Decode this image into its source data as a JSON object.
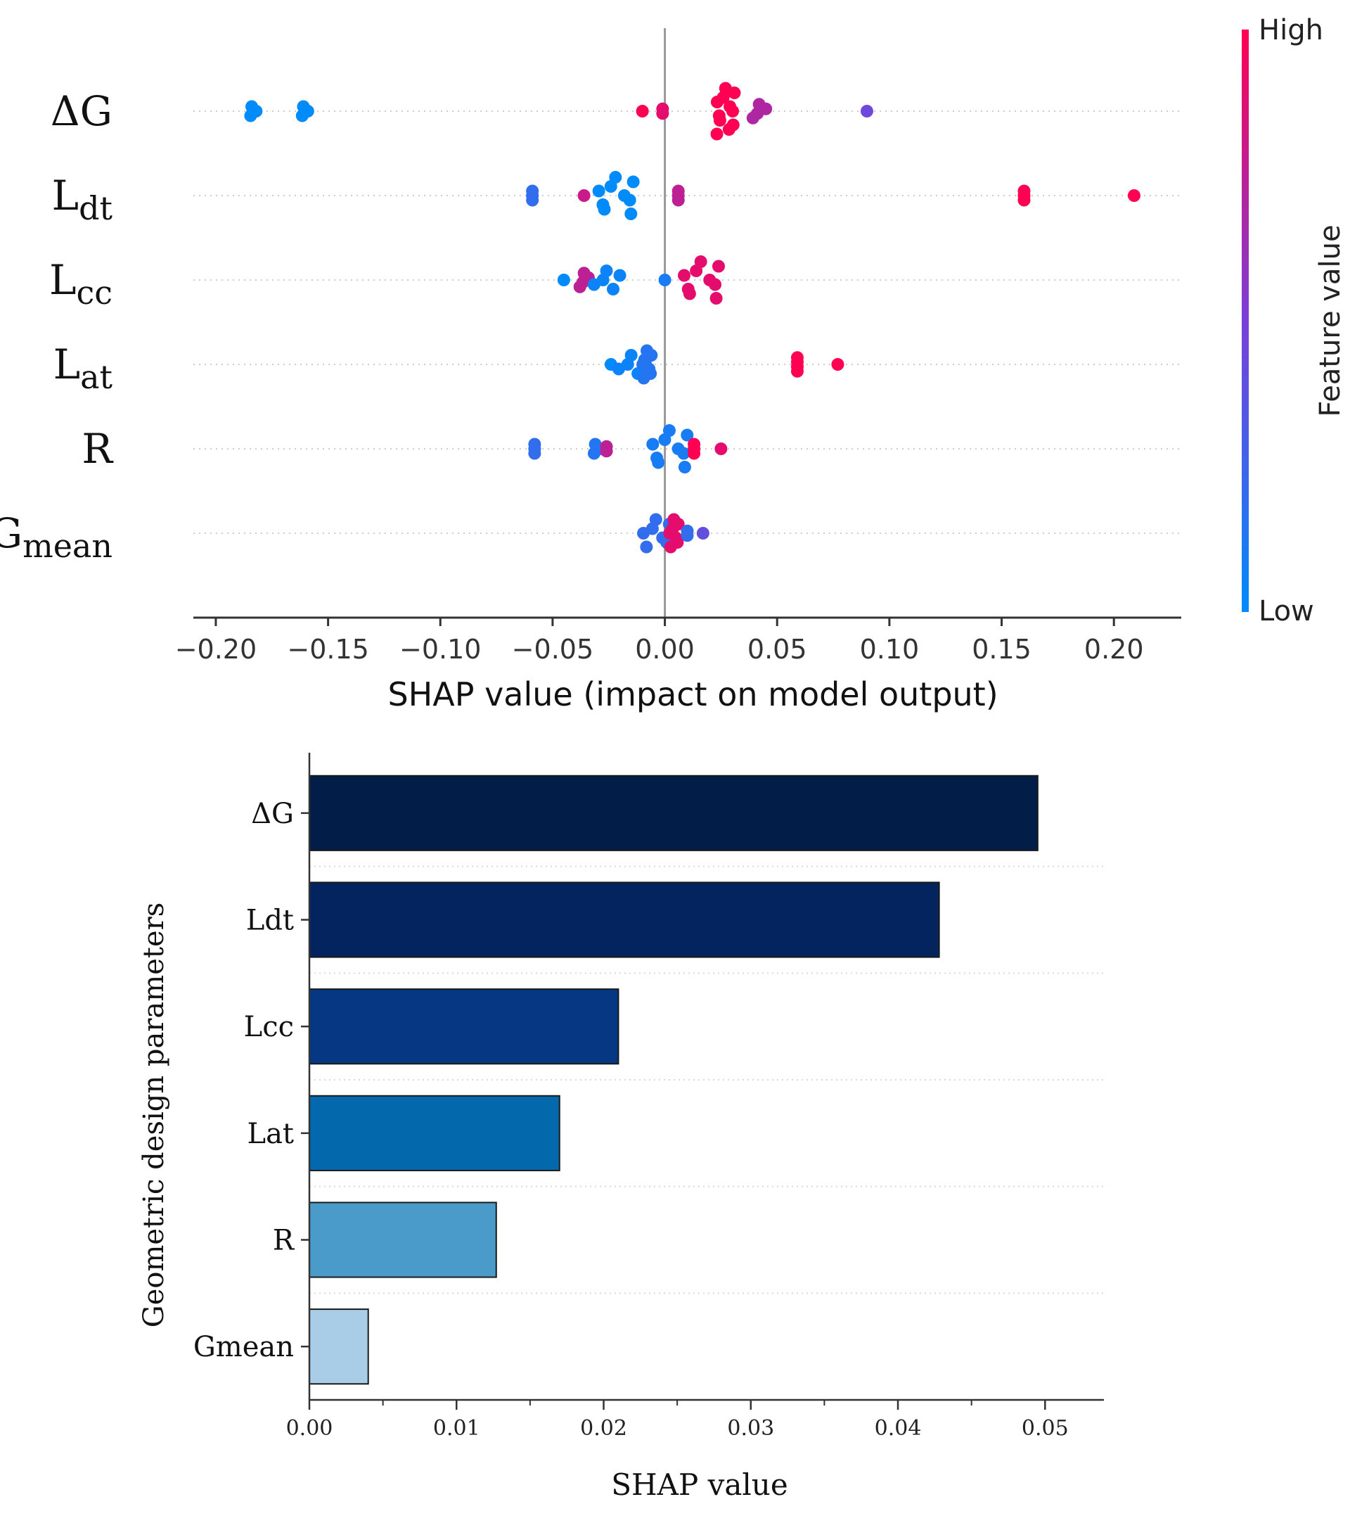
{
  "chart_data": [
    {
      "type": "scatter",
      "subtype": "shap-beeswarm",
      "xlabel": "SHAP value (impact on model output)",
      "xlim": [
        -0.21,
        0.23
      ],
      "xticks": [
        -0.2,
        -0.15,
        -0.1,
        -0.05,
        0.0,
        0.05,
        0.1,
        0.15,
        0.2
      ],
      "xtick_labels": [
        "−0.20",
        "−0.15",
        "−0.10",
        "−0.05",
        "0.00",
        "0.05",
        "0.10",
        "0.15",
        "0.20"
      ],
      "zero_line": 0.0,
      "colorbar": {
        "label": "Feature value",
        "high_label": "High",
        "low_label": "Low",
        "high_color": "#ff0052",
        "low_color": "#008bfb"
      },
      "features": [
        {
          "name": "ΔG",
          "main": "ΔG",
          "sub": "",
          "clusters": [
            {
              "x": -0.184,
              "c": 0.0,
              "n": 3,
              "w": 0.002
            },
            {
              "x": -0.161,
              "c": 0.0,
              "n": 3,
              "w": 0.002
            },
            {
              "x": -0.01,
              "c": 1.0,
              "n": 1,
              "w": 0.0
            },
            {
              "x": -0.001,
              "c": 0.9,
              "n": 2,
              "w": 0.0
            },
            {
              "x": 0.027,
              "c": 1.0,
              "n": 11,
              "w": 0.004
            },
            {
              "x": 0.042,
              "c": 0.7,
              "n": 4,
              "w": 0.003
            },
            {
              "x": 0.09,
              "c": 0.45,
              "n": 1,
              "w": 0.0
            }
          ]
        },
        {
          "name": "Ldt",
          "main": "L",
          "sub": "dt",
          "clusters": [
            {
              "x": -0.059,
              "c": 0.2,
              "n": 3,
              "w": 0.0
            },
            {
              "x": -0.036,
              "c": 0.8,
              "n": 1,
              "w": 0.0
            },
            {
              "x": -0.022,
              "c": 0.0,
              "n": 9,
              "w": 0.008
            },
            {
              "x": 0.006,
              "c": 0.75,
              "n": 3,
              "w": 0.0
            },
            {
              "x": 0.16,
              "c": 1.0,
              "n": 3,
              "w": 0.0
            },
            {
              "x": 0.209,
              "c": 1.0,
              "n": 1,
              "w": 0.0
            }
          ]
        },
        {
          "name": "Lcc",
          "main": "L",
          "sub": "cc",
          "clusters": [
            {
              "x": -0.045,
              "c": 0.0,
              "n": 1,
              "w": 0.0
            },
            {
              "x": -0.036,
              "c": 0.75,
              "n": 4,
              "w": 0.002
            },
            {
              "x": -0.026,
              "c": 0.05,
              "n": 5,
              "w": 0.006
            },
            {
              "x": 0.0,
              "c": 0.1,
              "n": 1,
              "w": 0.0
            },
            {
              "x": 0.016,
              "c": 0.9,
              "n": 9,
              "w": 0.008
            }
          ]
        },
        {
          "name": "Lat",
          "main": "L",
          "sub": "at",
          "clusters": [
            {
              "x": -0.024,
              "c": 0.0,
              "n": 1,
              "w": 0.0
            },
            {
              "x": -0.015,
              "c": 0.05,
              "n": 5,
              "w": 0.006
            },
            {
              "x": -0.008,
              "c": 0.15,
              "n": 7,
              "w": 0.002
            },
            {
              "x": 0.059,
              "c": 1.0,
              "n": 4,
              "w": 0.0
            },
            {
              "x": 0.077,
              "c": 1.0,
              "n": 1,
              "w": 0.0
            }
          ]
        },
        {
          "name": "R",
          "main": "R",
          "sub": "",
          "clusters": [
            {
              "x": -0.058,
              "c": 0.2,
              "n": 3,
              "w": 0.0
            },
            {
              "x": -0.031,
              "c": 0.15,
              "n": 3,
              "w": 0.002
            },
            {
              "x": -0.026,
              "c": 0.75,
              "n": 2,
              "w": 0.0
            },
            {
              "x": 0.002,
              "c": 0.1,
              "n": 9,
              "w": 0.008
            },
            {
              "x": 0.013,
              "c": 1.0,
              "n": 3,
              "w": 0.0
            },
            {
              "x": 0.025,
              "c": 0.9,
              "n": 1,
              "w": 0.0
            }
          ]
        },
        {
          "name": "Gmean",
          "main": "G",
          "sub": "mean",
          "clusters": [
            {
              "x": -0.004,
              "c": 0.2,
              "n": 7,
              "w": 0.006
            },
            {
              "x": 0.004,
              "c": 0.9,
              "n": 7,
              "w": 0.002
            },
            {
              "x": 0.01,
              "c": 0.2,
              "n": 2,
              "w": 0.0
            },
            {
              "x": 0.017,
              "c": 0.4,
              "n": 1,
              "w": 0.0
            }
          ]
        }
      ]
    },
    {
      "type": "bar",
      "orientation": "horizontal",
      "categories": [
        "ΔG",
        "Ldt",
        "Lcc",
        "Lat",
        "R",
        "Gmean"
      ],
      "values": [
        0.0495,
        0.0428,
        0.021,
        0.017,
        0.0127,
        0.004
      ],
      "colors": [
        "#021d48",
        "#03245e",
        "#053783",
        "#0469ac",
        "#4a9bc9",
        "#a9cce7"
      ],
      "xlabel": "SHAP value",
      "ylabel": "Geometric design parameters",
      "xlim": [
        0.0,
        0.054
      ],
      "xticks": [
        0.0,
        0.01,
        0.02,
        0.03,
        0.04,
        0.05
      ],
      "xtick_labels": [
        "0.00",
        "0.01",
        "0.02",
        "0.03",
        "0.04",
        "0.05"
      ],
      "grid": "horizontal dotted"
    }
  ]
}
